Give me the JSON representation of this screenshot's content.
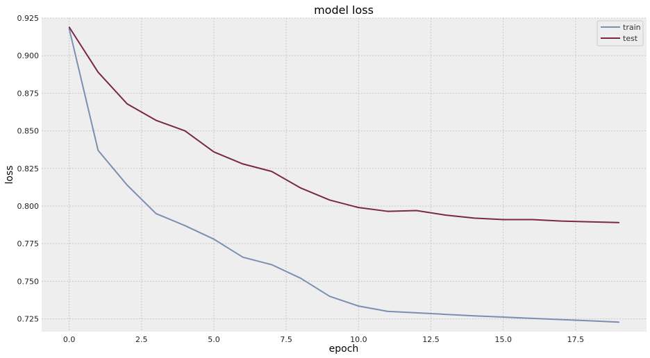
{
  "chart_data": {
    "type": "line",
    "title": "model loss",
    "xlabel": "epoch",
    "ylabel": "loss",
    "xlim": [
      -0.95,
      19.95
    ],
    "ylim": [
      0.7165,
      0.925
    ],
    "xticks": [
      0.0,
      2.5,
      5.0,
      7.5,
      10.0,
      12.5,
      15.0,
      17.5
    ],
    "xtick_labels": [
      "0.0",
      "2.5",
      "5.0",
      "7.5",
      "10.0",
      "12.5",
      "15.0",
      "17.5"
    ],
    "yticks": [
      0.725,
      0.75,
      0.775,
      0.8,
      0.825,
      0.85,
      0.875,
      0.9,
      0.925
    ],
    "ytick_labels": [
      "0.725",
      "0.750",
      "0.775",
      "0.800",
      "0.825",
      "0.850",
      "0.875",
      "0.900",
      "0.925"
    ],
    "grid": true,
    "legend_position": "top-right",
    "x": [
      0,
      1,
      2,
      3,
      4,
      5,
      6,
      7,
      8,
      9,
      10,
      11,
      12,
      13,
      14,
      15,
      16,
      17,
      18,
      19
    ],
    "series": [
      {
        "name": "train",
        "color": "#7a8fb0",
        "values": [
          0.918,
          0.837,
          0.814,
          0.795,
          0.787,
          0.778,
          0.766,
          0.761,
          0.752,
          0.74,
          0.7335,
          0.73,
          0.729,
          0.728,
          0.727,
          0.7262,
          0.7253,
          0.7245,
          0.7237,
          0.7228
        ]
      },
      {
        "name": "test",
        "color": "#7a2840",
        "values": [
          0.919,
          0.889,
          0.868,
          0.857,
          0.85,
          0.836,
          0.828,
          0.823,
          0.812,
          0.804,
          0.799,
          0.7965,
          0.797,
          0.794,
          0.792,
          0.791,
          0.791,
          0.79,
          0.7895,
          0.789
        ]
      }
    ]
  }
}
